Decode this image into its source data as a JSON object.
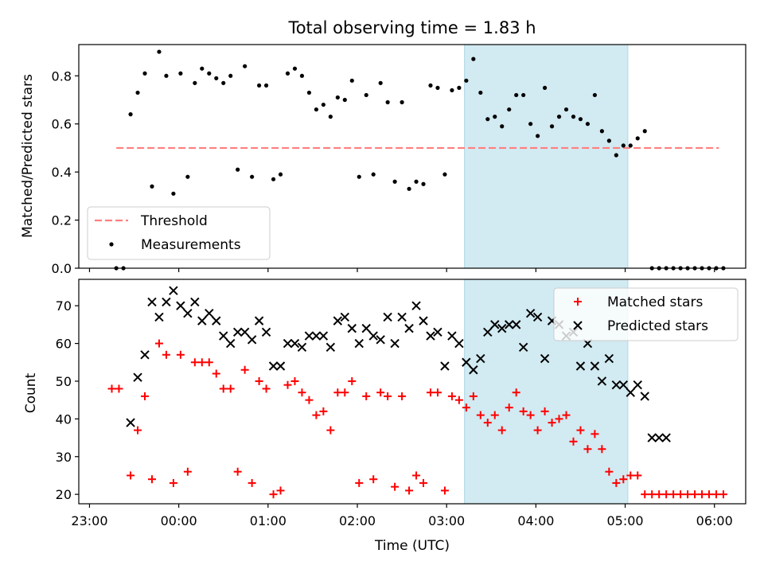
{
  "chart_data": {
    "title": "Total observing time = 1.83 h",
    "xlabel": "Time (UTC)",
    "x_ticks": [
      "23:00",
      "00:00",
      "01:00",
      "02:00",
      "03:00",
      "04:00",
      "05:00",
      "06:00"
    ],
    "x_tick_hours": [
      -1,
      0,
      1,
      2,
      3,
      4,
      5,
      6
    ],
    "xlim_hours": [
      -1.12,
      6.35
    ],
    "shaded_span_hours": [
      3.2,
      5.03
    ],
    "shade_color": "#add8e6",
    "panels": [
      {
        "type": "scatter",
        "ylabel": "Matched/Predicted stars",
        "ylim": [
          0,
          0.93
        ],
        "y_ticks": [
          0.0,
          0.2,
          0.4,
          0.6,
          0.8
        ],
        "y_tick_labels": [
          "0.0",
          "0.2",
          "0.4",
          "0.6",
          "0.8"
        ],
        "legend": {
          "position": "lower-left",
          "entries": [
            "Threshold",
            "Measurements"
          ]
        },
        "threshold": {
          "name": "Threshold",
          "value": 0.5,
          "x_range_hours": [
            -0.7,
            6.05
          ],
          "color": "#ff7f7f",
          "style": "dashed"
        },
        "series": [
          {
            "name": "Measurements",
            "marker": "dot",
            "color": "#000000",
            "x": [
              -0.7,
              -0.62,
              -0.54,
              -0.46,
              -0.38,
              -0.3,
              -0.22,
              -0.14,
              -0.06,
              0.02,
              0.1,
              0.18,
              0.26,
              0.34,
              0.42,
              0.5,
              0.58,
              0.66,
              0.74,
              0.82,
              0.9,
              0.98,
              1.06,
              1.14,
              1.22,
              1.3,
              1.38,
              1.46,
              1.54,
              1.62,
              1.7,
              1.78,
              1.86,
              1.94,
              2.02,
              2.1,
              2.18,
              2.26,
              2.34,
              2.42,
              2.5,
              2.58,
              2.66,
              2.74,
              2.82,
              2.9,
              2.98,
              3.06,
              3.14,
              3.22,
              3.3,
              3.38,
              3.46,
              3.54,
              3.62,
              3.7,
              3.78,
              3.86,
              3.94,
              4.02,
              4.1,
              4.18,
              4.26,
              4.34,
              4.42,
              4.5,
              4.58,
              4.66,
              4.74,
              4.82,
              4.9,
              4.98,
              5.06,
              5.14,
              5.22,
              5.3,
              5.38,
              5.46,
              5.54,
              5.62,
              5.7,
              5.78,
              5.86,
              5.94,
              6.02,
              6.1
            ],
            "y": [
              0.0,
              0.0,
              0.64,
              0.73,
              0.81,
              0.34,
              0.9,
              0.8,
              0.31,
              0.81,
              0.38,
              0.77,
              0.83,
              0.81,
              0.79,
              0.77,
              0.8,
              0.41,
              0.84,
              0.38,
              0.76,
              0.76,
              0.37,
              0.39,
              0.81,
              0.83,
              0.8,
              0.73,
              0.66,
              0.68,
              0.63,
              0.71,
              0.7,
              0.78,
              0.38,
              0.72,
              0.39,
              0.77,
              0.69,
              0.36,
              0.69,
              0.33,
              0.36,
              0.35,
              0.76,
              0.75,
              0.39,
              0.74,
              0.75,
              0.78,
              0.87,
              0.73,
              0.62,
              0.63,
              0.59,
              0.66,
              0.72,
              0.72,
              0.6,
              0.55,
              0.75,
              0.59,
              0.63,
              0.66,
              0.63,
              0.62,
              0.6,
              0.72,
              0.57,
              0.53,
              0.47,
              0.51,
              0.51,
              0.54,
              0.57,
              0.0,
              0.0,
              0.0,
              0.0,
              0.0,
              0.0,
              0.0,
              0.0,
              0.0,
              0.0,
              0.0
            ]
          }
        ]
      },
      {
        "type": "scatter",
        "ylabel": "Count",
        "ylim": [
          17.5,
          77
        ],
        "y_ticks": [
          20,
          30,
          40,
          50,
          60,
          70
        ],
        "y_tick_labels": [
          "20",
          "30",
          "40",
          "50",
          "60",
          "70"
        ],
        "legend": {
          "position": "upper-right",
          "entries": [
            "Matched stars",
            "Predicted stars"
          ]
        },
        "series": [
          {
            "name": "Matched stars",
            "marker": "plus",
            "color": "#ff0000",
            "x": [
              -0.75,
              -0.67,
              -0.54,
              -0.46,
              -0.38,
              -0.3,
              -0.22,
              -0.14,
              -0.06,
              0.02,
              0.1,
              0.18,
              0.26,
              0.34,
              0.42,
              0.5,
              0.58,
              0.66,
              0.74,
              0.82,
              0.9,
              0.98,
              1.06,
              1.14,
              1.22,
              1.3,
              1.38,
              1.46,
              1.54,
              1.62,
              1.7,
              1.78,
              1.86,
              1.94,
              2.02,
              2.1,
              2.18,
              2.26,
              2.34,
              2.42,
              2.5,
              2.58,
              2.66,
              2.74,
              2.82,
              2.9,
              2.98,
              3.06,
              3.14,
              3.22,
              3.3,
              3.38,
              3.46,
              3.54,
              3.62,
              3.7,
              3.78,
              3.86,
              3.94,
              4.02,
              4.1,
              4.18,
              4.26,
              4.34,
              4.42,
              4.5,
              4.58,
              4.66,
              4.74,
              4.82,
              4.9,
              4.98,
              5.06,
              5.14,
              5.22,
              5.3,
              5.38,
              5.46,
              5.54,
              5.62,
              5.7,
              5.78,
              5.86,
              5.94,
              6.02,
              6.1
            ],
            "y": [
              48,
              48,
              25,
              37,
              46,
              24,
              60,
              57,
              23,
              57,
              26,
              55,
              55,
              55,
              52,
              48,
              48,
              26,
              53,
              23,
              50,
              48,
              20,
              21,
              49,
              50,
              47,
              45,
              41,
              42,
              37,
              47,
              47,
              50,
              23,
              46,
              24,
              47,
              46,
              22,
              46,
              21,
              25,
              23,
              47,
              47,
              21,
              46,
              45,
              43,
              46,
              41,
              39,
              41,
              37,
              43,
              47,
              42,
              41,
              37,
              42,
              39,
              40,
              41,
              34,
              37,
              32,
              36,
              32,
              26,
              23,
              24,
              25,
              25,
              20,
              20,
              20,
              20,
              20,
              20,
              20,
              20,
              20,
              20,
              20,
              20
            ]
          },
          {
            "name": "Predicted stars",
            "marker": "x",
            "color": "#000000",
            "x": [
              -0.54,
              -0.46,
              -0.38,
              -0.3,
              -0.22,
              -0.14,
              -0.06,
              0.02,
              0.1,
              0.18,
              0.26,
              0.34,
              0.42,
              0.5,
              0.58,
              0.66,
              0.74,
              0.82,
              0.9,
              0.98,
              1.06,
              1.14,
              1.22,
              1.3,
              1.38,
              1.46,
              1.54,
              1.62,
              1.7,
              1.78,
              1.86,
              1.94,
              2.02,
              2.1,
              2.18,
              2.26,
              2.34,
              2.42,
              2.5,
              2.58,
              2.66,
              2.74,
              2.82,
              2.9,
              2.98,
              3.06,
              3.14,
              3.22,
              3.3,
              3.38,
              3.46,
              3.54,
              3.62,
              3.7,
              3.78,
              3.86,
              3.94,
              4.02,
              4.1,
              4.18,
              4.26,
              4.34,
              4.42,
              4.5,
              4.58,
              4.66,
              4.74,
              4.82,
              4.9,
              4.98,
              5.06,
              5.14,
              5.22,
              5.3,
              5.38,
              5.46
            ],
            "y": [
              39,
              51,
              57,
              71,
              67,
              71,
              74,
              70,
              68,
              71,
              66,
              68,
              66,
              62,
              60,
              63,
              63,
              61,
              66,
              63,
              54,
              54,
              60,
              60,
              59,
              62,
              62,
              62,
              59,
              66,
              67,
              64,
              60,
              64,
              62,
              61,
              67,
              60,
              67,
              64,
              70,
              66,
              62,
              63,
              54,
              62,
              60,
              55,
              53,
              56,
              63,
              65,
              64,
              65,
              65,
              59,
              68,
              67,
              56,
              66,
              65,
              62,
              63,
              54,
              60,
              54,
              50,
              56,
              49,
              49,
              47,
              49,
              46,
              35,
              35,
              35
            ]
          }
        ]
      }
    ]
  }
}
